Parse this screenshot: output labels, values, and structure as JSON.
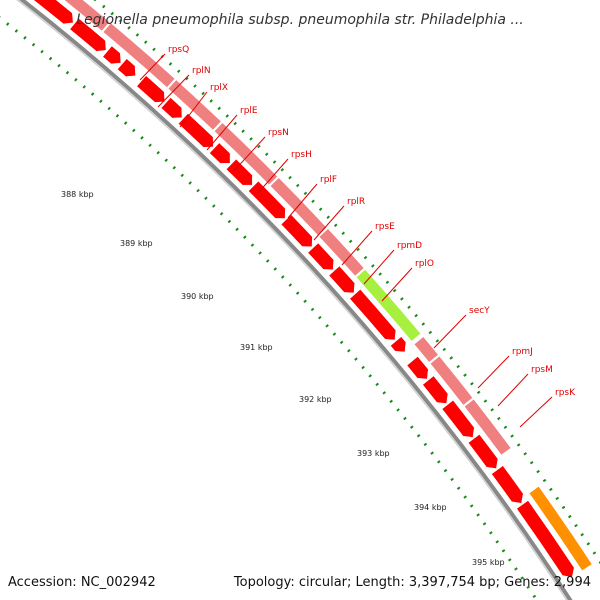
{
  "title": "Legionella pneumophila subsp. pneumophila str. Philadelphia ...",
  "accession": "Accession: NC_002942",
  "summary": "Topology: circular; Length: 3,397,754 bp; Genes: 2,994",
  "ruler": [
    {
      "label": "388 kbp"
    },
    {
      "label": "389 kbp"
    },
    {
      "label": "390 kbp"
    },
    {
      "label": "391 kbp"
    },
    {
      "label": "392 kbp"
    },
    {
      "label": "393 kbp"
    },
    {
      "label": "394 kbp"
    },
    {
      "label": "395 kbp"
    }
  ],
  "genes": [
    {
      "label": "rpsQ"
    },
    {
      "label": "rplN"
    },
    {
      "label": "rplX"
    },
    {
      "label": "rplE"
    },
    {
      "label": "rpsN"
    },
    {
      "label": "rpsH"
    },
    {
      "label": "rplF"
    },
    {
      "label": "rplR"
    },
    {
      "label": "rpsE"
    },
    {
      "label": "rpmD"
    },
    {
      "label": "rplO"
    },
    {
      "label": "secY"
    },
    {
      "label": "rpmJ"
    },
    {
      "label": "rpsM"
    },
    {
      "label": "rpsK"
    }
  ],
  "colors": {
    "cds_forward": "#f08080",
    "cds_reverse": "#ff0000",
    "highlight_secY": "#a8f040",
    "highlight_next": "#ff9000",
    "tick": "#1a8a1a",
    "backbone": "#888888"
  }
}
